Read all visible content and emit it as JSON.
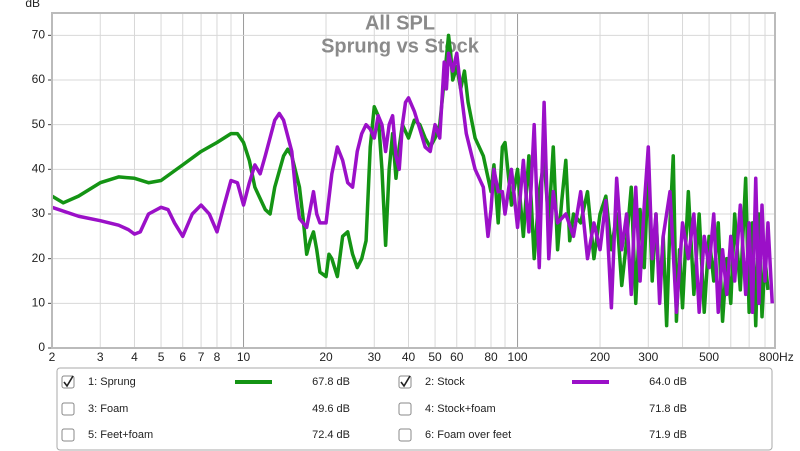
{
  "chart_data": {
    "type": "line",
    "title": "All SPL",
    "subtitle": "Sprung vs Stock",
    "y_label": "dB",
    "xscale": "log",
    "xlim": [
      2,
      870
    ],
    "ylim": [
      0,
      75
    ],
    "grid": true,
    "xticks": [
      2,
      3,
      4,
      5,
      6,
      7,
      8,
      10,
      20,
      30,
      40,
      50,
      60,
      80,
      100,
      200,
      300,
      500,
      {
        "value": 800,
        "label": "800Hz"
      }
    ],
    "x_minor_ticks": [
      9,
      70,
      90,
      400,
      600,
      700
    ],
    "yticks": [
      0,
      10,
      20,
      30,
      40,
      50,
      60,
      70
    ],
    "series": [
      {
        "name": "1: Sprung",
        "color": "#149414",
        "checked": true,
        "level": "67.8 dB",
        "x": [
          2,
          2.2,
          2.5,
          3,
          3.5,
          4,
          4.5,
          5,
          6,
          7,
          8,
          9,
          9.5,
          10,
          10.5,
          11,
          12,
          12.5,
          13,
          14,
          14.5,
          15,
          16,
          16.5,
          17,
          17.5,
          18,
          18.5,
          19,
          20,
          20.5,
          21,
          22,
          23,
          24,
          25,
          26,
          27,
          28,
          29,
          30,
          31,
          32,
          33,
          34,
          35,
          36,
          37,
          38,
          40,
          42,
          44,
          46,
          48,
          50,
          52,
          54,
          56,
          57,
          58,
          60,
          62,
          64,
          66,
          70,
          75,
          80,
          82,
          85,
          88,
          90,
          95,
          100,
          105,
          110,
          115,
          120,
          125,
          130,
          135,
          140,
          145,
          150,
          155,
          160,
          170,
          180,
          190,
          200,
          210,
          220,
          230,
          240,
          250,
          260,
          270,
          280,
          290,
          300,
          310,
          320,
          330,
          340,
          350,
          360,
          370,
          380,
          390,
          400,
          420,
          440,
          460,
          480,
          500,
          520,
          540,
          560,
          580,
          600,
          620,
          650,
          680,
          700,
          720,
          740,
          760,
          780,
          800,
          820
        ],
        "values": [
          34,
          32.5,
          34,
          37,
          38.3,
          38,
          37,
          37.5,
          41,
          44,
          46,
          48,
          48,
          46,
          42,
          36,
          31,
          30,
          36,
          43,
          44.5,
          43,
          36,
          29,
          21,
          24,
          26,
          22,
          17,
          16,
          21,
          20,
          16,
          25,
          26,
          21,
          18,
          20,
          24,
          45,
          54,
          52,
          40,
          23,
          40,
          48,
          38,
          45,
          50,
          47,
          51,
          50,
          47,
          45,
          47,
          50,
          60,
          70,
          66,
          60,
          63,
          58,
          62,
          55,
          47,
          43,
          35,
          41,
          28,
          45,
          46,
          32,
          40,
          25,
          43,
          20,
          35,
          42,
          28,
          45,
          22,
          33,
          42,
          24,
          30,
          28,
          35,
          20,
          30,
          34,
          22,
          30,
          14,
          24,
          36,
          10,
          31,
          18,
          40,
          15,
          30,
          12,
          25,
          5,
          28,
          43,
          6,
          22,
          9,
          35,
          12,
          30,
          8,
          25,
          15,
          28,
          6,
          20,
          10,
          30,
          13,
          38,
          8,
          28,
          5,
          30,
          7,
          20,
          13
        ]
      },
      {
        "name": "2: Stock",
        "color": "#9b10c8",
        "checked": true,
        "level": "64.0 dB",
        "x": [
          2,
          2.5,
          3,
          3.5,
          3.8,
          4,
          4.2,
          4.5,
          5,
          5.3,
          5.6,
          6,
          6.5,
          7,
          7.5,
          8,
          8.5,
          9,
          9.5,
          10,
          10.5,
          11,
          11.5,
          12,
          13,
          13.5,
          14,
          15,
          15.5,
          16,
          17,
          17.5,
          18,
          18.5,
          19,
          20,
          21,
          22,
          23,
          24,
          25,
          26,
          27,
          28,
          29,
          30,
          31,
          32,
          33,
          34,
          35,
          36,
          37,
          38,
          39,
          40,
          42,
          44,
          46,
          48,
          50,
          52,
          54,
          55,
          56,
          58,
          60,
          62,
          65,
          70,
          75,
          78,
          80,
          82,
          85,
          88,
          90,
          95,
          100,
          105,
          110,
          115,
          120,
          125,
          130,
          135,
          140,
          150,
          160,
          170,
          180,
          190,
          200,
          210,
          220,
          230,
          240,
          250,
          260,
          270,
          280,
          290,
          300,
          310,
          320,
          330,
          340,
          360,
          380,
          400,
          420,
          440,
          460,
          480,
          500,
          520,
          540,
          560,
          580,
          600,
          620,
          650,
          680,
          700,
          720,
          740,
          760,
          780,
          800,
          820,
          850
        ],
        "values": [
          31.5,
          29.5,
          28.5,
          27.5,
          26.5,
          25.5,
          26,
          30,
          31.5,
          31,
          28,
          25,
          30,
          32,
          30,
          26,
          32,
          37.5,
          37,
          32,
          37,
          41,
          39,
          43,
          51,
          52.5,
          51,
          44,
          35,
          29,
          27,
          31,
          35,
          30,
          28,
          28,
          39,
          45,
          42,
          37,
          36,
          44,
          48,
          50,
          49,
          47,
          52,
          50,
          44,
          50,
          52,
          43,
          40,
          50,
          55,
          56,
          53,
          49,
          45,
          44,
          50,
          47,
          64,
          58,
          66,
          62,
          66,
          58,
          48,
          40,
          36,
          25,
          31,
          40,
          35,
          35,
          30,
          40,
          27,
          42,
          26,
          50,
          18,
          55,
          20,
          35,
          28,
          30,
          25,
          35,
          20,
          28,
          22,
          33,
          9,
          38,
          22,
          30,
          12,
          36,
          15,
          32,
          45,
          20,
          30,
          10,
          25,
          35,
          8,
          28,
          20,
          30,
          8,
          25,
          18,
          30,
          8,
          22,
          12,
          25,
          15,
          32,
          12,
          28,
          8,
          38,
          10,
          32,
          15,
          28,
          10
        ]
      },
      {
        "name": "3: Foam",
        "color": "#2a2aee",
        "checked": false,
        "level": "49.6 dB"
      },
      {
        "name": "4: Stock+foam",
        "color": "#e02020",
        "checked": false,
        "level": "71.8 dB"
      },
      {
        "name": "5: Feet+foam",
        "color": "#00c8d0",
        "checked": false,
        "level": "72.4 dB"
      },
      {
        "name": "6: Foam over feet",
        "color": "#a8a800",
        "checked": false,
        "level": "71.9 dB"
      }
    ]
  }
}
